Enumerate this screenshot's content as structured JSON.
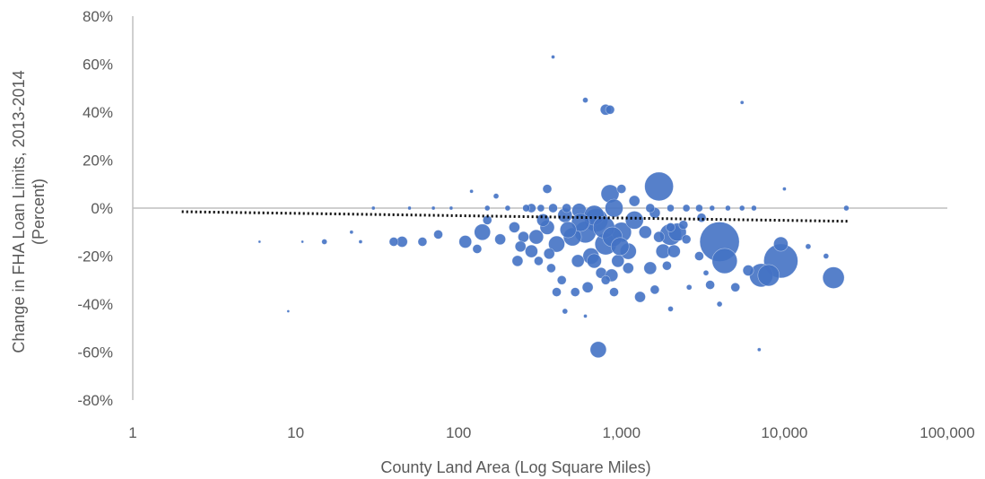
{
  "chart_data": {
    "type": "scatter",
    "title": "",
    "xlabel": "County Land Area (Log Square Miles)",
    "ylabel_lines": [
      "Change in FHA Loan Limits, 2013-2014",
      "(Percent)"
    ],
    "x_scale": "log",
    "xlim": [
      1,
      100000
    ],
    "ylim": [
      -80,
      80
    ],
    "x_ticks": [
      1,
      10,
      100,
      1000,
      10000,
      100000
    ],
    "x_tick_labels": [
      "1",
      "10",
      "100",
      "1,000",
      "10,000",
      "100,000"
    ],
    "y_ticks": [
      -80,
      -60,
      -40,
      -20,
      0,
      20,
      40,
      60,
      80
    ],
    "y_tick_labels": [
      "-80%",
      "-60%",
      "-40%",
      "-20%",
      "0%",
      "20%",
      "40%",
      "60%",
      "80%"
    ],
    "grid": false,
    "legend": "none",
    "marker_color": "#4472c4",
    "trendline": {
      "style": "dotted",
      "color": "#000000",
      "x": [
        2,
        25000
      ],
      "y": [
        -1.5,
        -5.5
      ]
    },
    "series": [
      {
        "size_encoded": true,
        "points": [
          [
            1700,
            9,
            16
          ],
          [
            4000,
            -14,
            22
          ],
          [
            9500,
            -22,
            19
          ],
          [
            4300,
            -22,
            14
          ],
          [
            7200,
            -28,
            13
          ],
          [
            8000,
            -28,
            12
          ],
          [
            20000,
            -29,
            12
          ],
          [
            2000,
            -11,
            12
          ],
          [
            2200,
            -10,
            10
          ],
          [
            850,
            6,
            10
          ],
          [
            900,
            0,
            10
          ],
          [
            700,
            -5,
            13
          ],
          [
            600,
            -10,
            12
          ],
          [
            500,
            -12,
            10
          ],
          [
            800,
            -15,
            12
          ],
          [
            1000,
            -10,
            11
          ],
          [
            1200,
            -5,
            10
          ],
          [
            1100,
            -18,
            9
          ],
          [
            650,
            -20,
            9
          ],
          [
            400,
            -15,
            9
          ],
          [
            300,
            -12,
            8
          ],
          [
            350,
            -8,
            8
          ],
          [
            450,
            -3,
            8
          ],
          [
            550,
            -1,
            8
          ],
          [
            1400,
            -10,
            7
          ],
          [
            1800,
            -18,
            8
          ],
          [
            2100,
            -18,
            7
          ],
          [
            720,
            -59,
            9
          ],
          [
            800,
            41,
            6
          ],
          [
            850,
            41,
            5
          ],
          [
            9500,
            -15,
            8
          ],
          [
            6000,
            -26,
            6
          ],
          [
            1500,
            -25,
            7
          ],
          [
            1300,
            -37,
            6
          ],
          [
            950,
            -22,
            7
          ],
          [
            750,
            -27,
            6
          ],
          [
            620,
            -33,
            6
          ],
          [
            520,
            -35,
            5
          ],
          [
            430,
            -30,
            5
          ],
          [
            370,
            -25,
            5
          ],
          [
            280,
            -18,
            7
          ],
          [
            250,
            -12,
            6
          ],
          [
            220,
            -8,
            6
          ],
          [
            180,
            -13,
            6
          ],
          [
            140,
            -10,
            9
          ],
          [
            130,
            -17,
            5
          ],
          [
            110,
            -14,
            7
          ],
          [
            75,
            -11,
            5
          ],
          [
            60,
            -14,
            5
          ],
          [
            45,
            -14,
            6
          ],
          [
            40,
            -14,
            5
          ],
          [
            350,
            8,
            5
          ],
          [
            280,
            0,
            5
          ],
          [
            1000,
            8,
            5
          ],
          [
            1200,
            3,
            6
          ],
          [
            1600,
            -2,
            6
          ],
          [
            2500,
            -13,
            5
          ],
          [
            3000,
            -20,
            5
          ],
          [
            3500,
            -32,
            5
          ],
          [
            5000,
            -33,
            5
          ],
          [
            400,
            -35,
            5
          ],
          [
            900,
            -35,
            5
          ],
          [
            1600,
            -34,
            5
          ],
          [
            2000,
            -42,
            3
          ],
          [
            4000,
            -40,
            3
          ],
          [
            450,
            -43,
            3
          ],
          [
            600,
            -45,
            2
          ],
          [
            380,
            63,
            2
          ],
          [
            600,
            45,
            3
          ],
          [
            5500,
            44,
            2
          ],
          [
            10000,
            8,
            2
          ],
          [
            7000,
            -59,
            2
          ],
          [
            3300,
            -27,
            3
          ],
          [
            2600,
            -33,
            3
          ],
          [
            14000,
            -16,
            3
          ],
          [
            18000,
            -20,
            3
          ],
          [
            24000,
            0,
            3
          ],
          [
            15,
            -14,
            3
          ],
          [
            22,
            -10,
            2
          ],
          [
            25,
            -14,
            2
          ],
          [
            9,
            -43,
            1.5
          ],
          [
            6,
            -14,
            1.5
          ],
          [
            11,
            -14,
            1.5
          ],
          [
            30,
            0,
            2
          ],
          [
            50,
            0,
            2
          ],
          [
            70,
            0,
            2
          ],
          [
            90,
            0,
            2
          ],
          [
            150,
            0,
            3
          ],
          [
            200,
            0,
            3
          ],
          [
            260,
            0,
            4
          ],
          [
            320,
            0,
            4
          ],
          [
            380,
            0,
            5
          ],
          [
            460,
            0,
            5
          ],
          [
            1500,
            0,
            5
          ],
          [
            2000,
            0,
            4
          ],
          [
            2500,
            0,
            4
          ],
          [
            3000,
            0,
            4
          ],
          [
            3600,
            0,
            3
          ],
          [
            4500,
            0,
            3
          ],
          [
            5500,
            0,
            3
          ],
          [
            6500,
            0,
            3
          ],
          [
            680,
            -3,
            11
          ],
          [
            780,
            -8,
            12
          ],
          [
            880,
            -12,
            11
          ],
          [
            980,
            -16,
            10
          ],
          [
            560,
            -6,
            10
          ],
          [
            470,
            -9,
            9
          ],
          [
            330,
            -5,
            7
          ],
          [
            240,
            -16,
            6
          ],
          [
            1100,
            -25,
            6
          ],
          [
            870,
            -28,
            7
          ],
          [
            680,
            -22,
            8
          ],
          [
            540,
            -22,
            7
          ],
          [
            800,
            -30,
            5
          ],
          [
            1700,
            -12,
            6
          ],
          [
            2400,
            -7,
            5
          ],
          [
            3100,
            -4,
            5
          ],
          [
            150,
            -5,
            5
          ],
          [
            170,
            5,
            3
          ],
          [
            120,
            7,
            2
          ],
          [
            230,
            -22,
            6
          ],
          [
            310,
            -22,
            5
          ],
          [
            360,
            -19,
            6
          ],
          [
            2000,
            -8,
            5
          ],
          [
            1900,
            -24,
            5
          ]
        ]
      }
    ]
  }
}
